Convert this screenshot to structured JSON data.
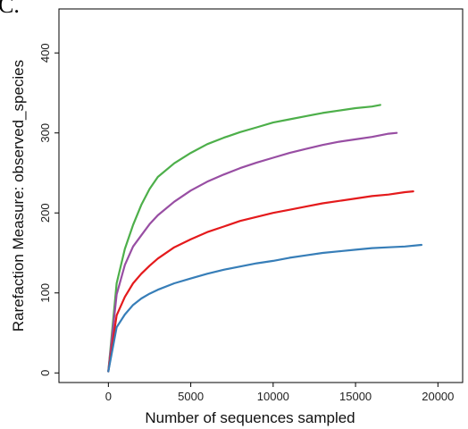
{
  "corner_text": "C.",
  "chart_data": {
    "type": "line",
    "title": "",
    "xlabel": "Number of sequences sampled",
    "ylabel": "Rarefaction Measure: observed_species",
    "xlim": [
      -3000,
      21500
    ],
    "ylim": [
      -12,
      455
    ],
    "xticks": [
      0,
      5000,
      10000,
      15000,
      20000
    ],
    "yticks": [
      0,
      100,
      200,
      300,
      400
    ],
    "grid": false,
    "legend": "none",
    "series": [
      {
        "color": "#4daf4a",
        "points": [
          [
            0,
            2
          ],
          [
            500,
            112
          ],
          [
            1000,
            155
          ],
          [
            1500,
            185
          ],
          [
            2000,
            210
          ],
          [
            2500,
            230
          ],
          [
            3000,
            245
          ],
          [
            4000,
            262
          ],
          [
            5000,
            275
          ],
          [
            6000,
            286
          ],
          [
            7000,
            294
          ],
          [
            8000,
            301
          ],
          [
            9000,
            307
          ],
          [
            10000,
            313
          ],
          [
            11000,
            317
          ],
          [
            12000,
            321
          ],
          [
            13000,
            325
          ],
          [
            14000,
            328
          ],
          [
            15000,
            331
          ],
          [
            16000,
            333
          ],
          [
            16500,
            335
          ]
        ]
      },
      {
        "color": "#984ea3",
        "points": [
          [
            0,
            2
          ],
          [
            500,
            98
          ],
          [
            1000,
            135
          ],
          [
            1500,
            158
          ],
          [
            2000,
            172
          ],
          [
            2500,
            186
          ],
          [
            3000,
            197
          ],
          [
            4000,
            214
          ],
          [
            5000,
            228
          ],
          [
            6000,
            239
          ],
          [
            7000,
            248
          ],
          [
            8000,
            256
          ],
          [
            9000,
            263
          ],
          [
            10000,
            269
          ],
          [
            11000,
            275
          ],
          [
            12000,
            280
          ],
          [
            13000,
            285
          ],
          [
            14000,
            289
          ],
          [
            15000,
            292
          ],
          [
            16000,
            295
          ],
          [
            17000,
            299
          ],
          [
            17500,
            300
          ]
        ]
      },
      {
        "color": "#e41a1c",
        "points": [
          [
            0,
            2
          ],
          [
            500,
            72
          ],
          [
            1000,
            95
          ],
          [
            1500,
            112
          ],
          [
            2000,
            124
          ],
          [
            2500,
            134
          ],
          [
            3000,
            143
          ],
          [
            4000,
            157
          ],
          [
            5000,
            167
          ],
          [
            6000,
            176
          ],
          [
            7000,
            183
          ],
          [
            8000,
            190
          ],
          [
            9000,
            195
          ],
          [
            10000,
            200
          ],
          [
            11000,
            204
          ],
          [
            12000,
            208
          ],
          [
            13000,
            212
          ],
          [
            14000,
            215
          ],
          [
            15000,
            218
          ],
          [
            16000,
            221
          ],
          [
            17000,
            223
          ],
          [
            18000,
            226
          ],
          [
            18500,
            227
          ]
        ]
      },
      {
        "color": "#377eb8",
        "points": [
          [
            0,
            2
          ],
          [
            500,
            57
          ],
          [
            1000,
            73
          ],
          [
            1500,
            85
          ],
          [
            2000,
            93
          ],
          [
            2500,
            99
          ],
          [
            3000,
            104
          ],
          [
            4000,
            112
          ],
          [
            5000,
            118
          ],
          [
            6000,
            124
          ],
          [
            7000,
            129
          ],
          [
            8000,
            133
          ],
          [
            9000,
            137
          ],
          [
            10000,
            140
          ],
          [
            11000,
            144
          ],
          [
            12000,
            147
          ],
          [
            13000,
            150
          ],
          [
            14000,
            152
          ],
          [
            15000,
            154
          ],
          [
            16000,
            156
          ],
          [
            17000,
            157
          ],
          [
            18000,
            158
          ],
          [
            19000,
            160
          ]
        ]
      }
    ]
  }
}
